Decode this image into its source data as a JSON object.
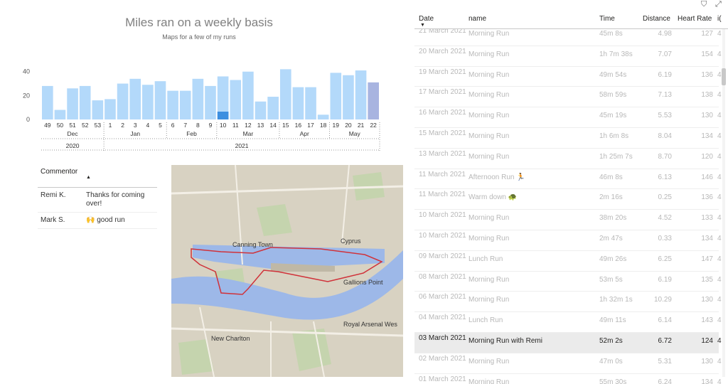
{
  "chart": {
    "title": "Miles ran on a weekly basis",
    "subtitle": "Maps for a few of my runs",
    "chart_data": {
      "type": "bar",
      "title": "Miles ran on a weekly basis",
      "subtitle": "Maps for a few of my runs",
      "ylim": [
        0,
        40
      ],
      "yticks": [
        "40",
        "20",
        "0"
      ],
      "categories": [
        "49",
        "50",
        "51",
        "52",
        "53",
        "1",
        "2",
        "3",
        "4",
        "5",
        "6",
        "7",
        "8",
        "9",
        "10",
        "11",
        "12",
        "13",
        "14",
        "15",
        "16",
        "17",
        "18",
        "19",
        "20",
        "21",
        "22"
      ],
      "values": [
        28,
        8,
        26,
        28,
        16,
        17,
        30,
        34,
        29,
        32,
        24,
        24,
        34,
        28,
        36,
        33,
        40,
        15,
        19,
        42,
        27,
        27,
        4,
        39,
        37,
        41,
        31
      ],
      "highlight_index": 14,
      "selected_index": 26,
      "months": [
        {
          "label": "Dec",
          "start": 0,
          "end": 4
        },
        {
          "label": "Jan",
          "start": 5,
          "end": 9
        },
        {
          "label": "Feb",
          "start": 10,
          "end": 13
        },
        {
          "label": "Mar",
          "start": 14,
          "end": 18
        },
        {
          "label": "Apr",
          "start": 19,
          "end": 22
        },
        {
          "label": "May",
          "start": 23,
          "end": 26
        }
      ],
      "years": [
        {
          "label": "2020",
          "start": 0,
          "end": 4
        },
        {
          "label": "2021",
          "start": 5,
          "end": 26
        }
      ],
      "grid": false,
      "legend": "none"
    }
  },
  "comments": {
    "header_commentor": "Commentor",
    "rows": [
      {
        "who": "Remi K.",
        "text": "Thanks for coming over!"
      },
      {
        "who": "Mark S.",
        "text": "🙌 good run"
      }
    ]
  },
  "map": {
    "labels": {
      "canning_town": "Canning Town",
      "cyprus": "Cyprus",
      "gallions_point": "Gallions Point",
      "new_charlton": "New Charlton",
      "royal_arsenal": "Royal Arsenal Wes"
    }
  },
  "runs": {
    "headers": {
      "date": "Date",
      "name": "name",
      "time": "Time",
      "distance": "Distance",
      "heart_rate": "Heart Rate",
      "extra": "i("
    },
    "rows": [
      {
        "date": "21 March 2021",
        "name": "Morning Run",
        "time": "45m 8s",
        "distance": "4.98",
        "hr": "127",
        "extra": "4"
      },
      {
        "date": "20 March 2021",
        "name": "Morning Run",
        "time": "1h 7m 38s",
        "distance": "7.07",
        "hr": "154",
        "extra": "4"
      },
      {
        "date": "19 March 2021",
        "name": "Morning Run",
        "time": "49m 54s",
        "distance": "6.19",
        "hr": "136",
        "extra": "4"
      },
      {
        "date": "17 March 2021",
        "name": "Morning Run",
        "time": "58m 59s",
        "distance": "7.13",
        "hr": "138",
        "extra": "4"
      },
      {
        "date": "16 March 2021",
        "name": "Morning Run",
        "time": "45m 19s",
        "distance": "5.53",
        "hr": "130",
        "extra": "4"
      },
      {
        "date": "15 March 2021",
        "name": "Morning Run",
        "time": "1h 6m 8s",
        "distance": "8.04",
        "hr": "134",
        "extra": "4"
      },
      {
        "date": "13 March 2021",
        "name": "Morning Run",
        "time": "1h 25m 7s",
        "distance": "8.70",
        "hr": "120",
        "extra": "4"
      },
      {
        "date": "11 March 2021",
        "name": "Afternoon Run 🏃",
        "time": "46m 8s",
        "distance": "6.13",
        "hr": "146",
        "extra": "4"
      },
      {
        "date": "11 March 2021",
        "name": "Warm down 🐢",
        "time": "2m 16s",
        "distance": "0.25",
        "hr": "136",
        "extra": "4"
      },
      {
        "date": "10 March 2021",
        "name": "Morning Run",
        "time": "38m 20s",
        "distance": "4.52",
        "hr": "133",
        "extra": "4"
      },
      {
        "date": "10 March 2021",
        "name": "Morning Run",
        "time": "2m 47s",
        "distance": "0.33",
        "hr": "134",
        "extra": "4"
      },
      {
        "date": "09 March 2021",
        "name": "Lunch Run",
        "time": "49m 26s",
        "distance": "6.25",
        "hr": "147",
        "extra": "4"
      },
      {
        "date": "08 March 2021",
        "name": "Morning Run",
        "time": "53m 5s",
        "distance": "6.19",
        "hr": "135",
        "extra": "4"
      },
      {
        "date": "06 March 2021",
        "name": "Morning Run",
        "time": "1h 32m 1s",
        "distance": "10.29",
        "hr": "130",
        "extra": "4"
      },
      {
        "date": "04 March 2021",
        "name": "Lunch Run",
        "time": "49m 11s",
        "distance": "6.14",
        "hr": "143",
        "extra": "4"
      },
      {
        "date": "03 March 2021",
        "name": "Morning Run with Remi",
        "time": "52m 2s",
        "distance": "6.72",
        "hr": "124",
        "extra": "4",
        "selected": true
      },
      {
        "date": "02 March 2021",
        "name": "Morning Run",
        "time": "47m 0s",
        "distance": "5.31",
        "hr": "130",
        "extra": "4"
      },
      {
        "date": "01 March 2021",
        "name": "Morning Run",
        "time": "55m 30s",
        "distance": "6.24",
        "hr": "134",
        "extra": "4"
      }
    ]
  },
  "colors": {
    "bar": "#b3d9fa",
    "bar_highlight": "#3d8fe0",
    "bar_selected": "#a8b4e0",
    "route": "#d0323a",
    "river": "#9db8e8",
    "land": "#d8d2c2"
  },
  "icons": {
    "filter": "filter-icon",
    "expand": "expand-icon"
  }
}
